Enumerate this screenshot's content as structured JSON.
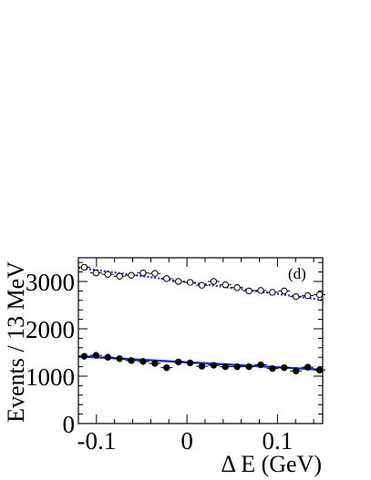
{
  "chart_data": {
    "type": "scatter",
    "title": "",
    "panel_label": "(d)",
    "xlabel": "Δ E (GeV)",
    "ylabel": "Events / 13 MeV",
    "xlim": [
      -0.12,
      0.15
    ],
    "ylim": [
      0,
      3500
    ],
    "x_ticks": [
      -0.1,
      0,
      0.1
    ],
    "x_tick_labels": [
      "-0.1",
      "0",
      "0.1"
    ],
    "y_ticks": [
      0,
      1000,
      2000,
      3000
    ],
    "y_tick_labels": [
      "0",
      "1000",
      "2000",
      "3000"
    ],
    "grid": false,
    "legend": "none",
    "x": [
      -0.1135,
      -0.1005,
      -0.0875,
      -0.0745,
      -0.0615,
      -0.0485,
      -0.0355,
      -0.0225,
      -0.0095,
      0.0035,
      0.0165,
      0.0295,
      0.0425,
      0.0555,
      0.0685,
      0.0815,
      0.0945,
      0.1075,
      0.1205,
      0.1335,
      0.1465
    ],
    "series": [
      {
        "marker": "open-circle",
        "values": [
          3300,
          3180,
          3150,
          3110,
          3130,
          3180,
          3170,
          3060,
          3000,
          2980,
          2920,
          3000,
          2930,
          2870,
          2800,
          2810,
          2770,
          2800,
          2680,
          2700,
          2720
        ],
        "fit": {
          "style": "dotted",
          "color": "#2233cc",
          "y_start": 3290,
          "y_end": 2610
        }
      },
      {
        "marker": "filled-circle",
        "values": [
          1420,
          1440,
          1400,
          1370,
          1330,
          1310,
          1270,
          1180,
          1300,
          1280,
          1210,
          1230,
          1200,
          1200,
          1200,
          1240,
          1160,
          1180,
          1110,
          1190,
          1130
        ],
        "fit": {
          "style": "solid",
          "color": "#1a2fd6",
          "y_start": 1420,
          "y_end": 1135
        }
      }
    ],
    "colors": {
      "fit_open": "#2233cc",
      "fit_filled": "#1a2fd6",
      "markers": "#000000"
    }
  }
}
